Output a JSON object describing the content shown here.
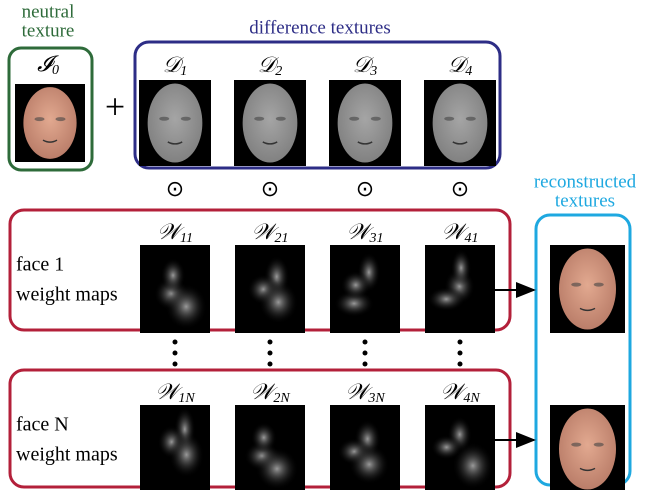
{
  "neutral": {
    "label": [
      "neutral",
      "texture"
    ],
    "symbol": {
      "letter": "𝓘",
      "sub": "0"
    }
  },
  "operator_plus": "+",
  "difference": {
    "title": "difference textures",
    "items": [
      {
        "letter": "𝒟",
        "sub": "1"
      },
      {
        "letter": "𝒟",
        "sub": "2"
      },
      {
        "letter": "𝒟",
        "sub": "3"
      },
      {
        "letter": "𝒟",
        "sub": "4"
      }
    ]
  },
  "operators": [
    "⊙",
    "⊙",
    "⊙",
    "⊙"
  ],
  "face_rows": [
    {
      "label": [
        "face 1",
        "weight maps"
      ],
      "maps": [
        {
          "letter": "𝒲",
          "sub": "11"
        },
        {
          "letter": "𝒲",
          "sub": "21"
        },
        {
          "letter": "𝒲",
          "sub": "31"
        },
        {
          "letter": "𝒲",
          "sub": "41"
        }
      ]
    },
    {
      "label": [
        "face N",
        "weight maps"
      ],
      "maps": [
        {
          "letter": "𝒲",
          "sub": "1N"
        },
        {
          "letter": "𝒲",
          "sub": "2N"
        },
        {
          "letter": "𝒲",
          "sub": "3N"
        },
        {
          "letter": "𝒲",
          "sub": "4N"
        }
      ]
    }
  ],
  "reconstructed": {
    "label": [
      "reconstructed",
      "textures"
    ]
  }
}
